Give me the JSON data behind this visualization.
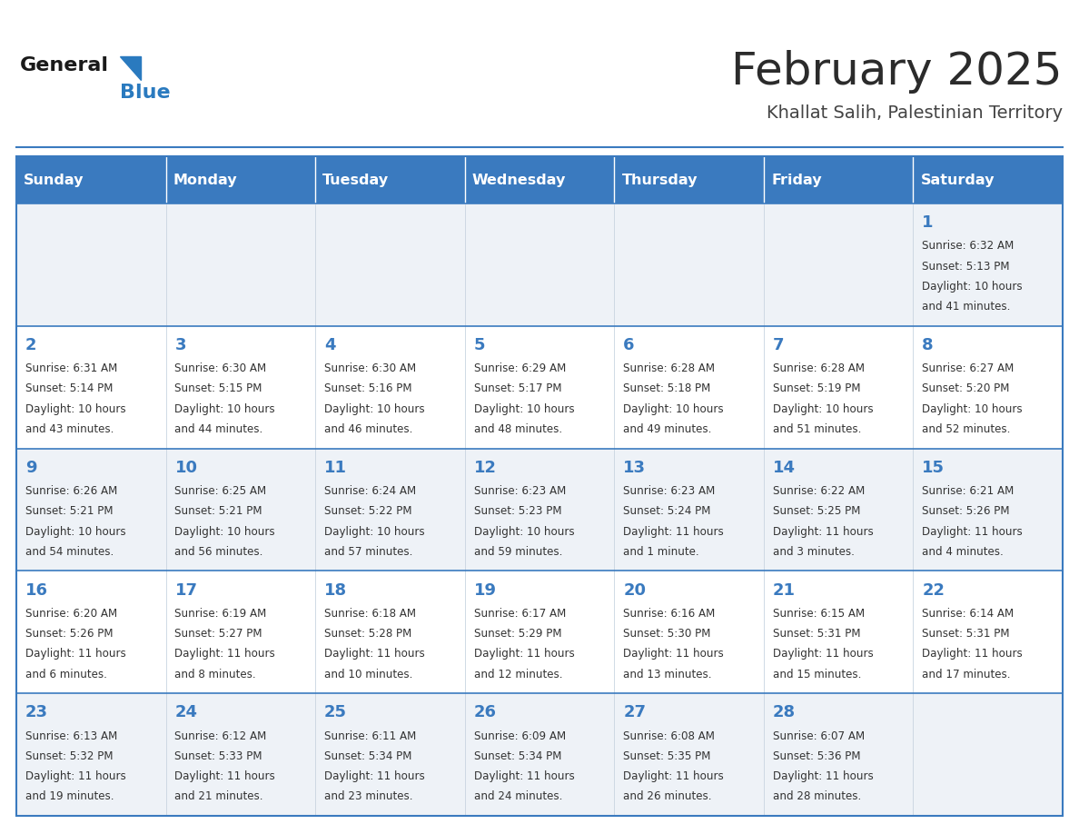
{
  "title": "February 2025",
  "subtitle": "Khallat Salih, Palestinian Territory",
  "header_color": "#3a7abf",
  "header_text_color": "#ffffff",
  "cell_bg_light": "#eef2f7",
  "cell_bg_white": "#ffffff",
  "border_color": "#3a7abf",
  "day_headers": [
    "Sunday",
    "Monday",
    "Tuesday",
    "Wednesday",
    "Thursday",
    "Friday",
    "Saturday"
  ],
  "title_color": "#2b2b2b",
  "subtitle_color": "#444444",
  "day_number_color": "#3a7abf",
  "info_color": "#333333",
  "logo_general_color": "#1a1a1a",
  "logo_blue_color": "#2a7abf",
  "weeks": [
    [
      {
        "day": null,
        "sunrise": null,
        "sunset": null,
        "daylight": null
      },
      {
        "day": null,
        "sunrise": null,
        "sunset": null,
        "daylight": null
      },
      {
        "day": null,
        "sunrise": null,
        "sunset": null,
        "daylight": null
      },
      {
        "day": null,
        "sunrise": null,
        "sunset": null,
        "daylight": null
      },
      {
        "day": null,
        "sunrise": null,
        "sunset": null,
        "daylight": null
      },
      {
        "day": null,
        "sunrise": null,
        "sunset": null,
        "daylight": null
      },
      {
        "day": 1,
        "sunrise": "6:32 AM",
        "sunset": "5:13 PM",
        "daylight": "10 hours and 41 minutes."
      }
    ],
    [
      {
        "day": 2,
        "sunrise": "6:31 AM",
        "sunset": "5:14 PM",
        "daylight": "10 hours and 43 minutes."
      },
      {
        "day": 3,
        "sunrise": "6:30 AM",
        "sunset": "5:15 PM",
        "daylight": "10 hours and 44 minutes."
      },
      {
        "day": 4,
        "sunrise": "6:30 AM",
        "sunset": "5:16 PM",
        "daylight": "10 hours and 46 minutes."
      },
      {
        "day": 5,
        "sunrise": "6:29 AM",
        "sunset": "5:17 PM",
        "daylight": "10 hours and 48 minutes."
      },
      {
        "day": 6,
        "sunrise": "6:28 AM",
        "sunset": "5:18 PM",
        "daylight": "10 hours and 49 minutes."
      },
      {
        "day": 7,
        "sunrise": "6:28 AM",
        "sunset": "5:19 PM",
        "daylight": "10 hours and 51 minutes."
      },
      {
        "day": 8,
        "sunrise": "6:27 AM",
        "sunset": "5:20 PM",
        "daylight": "10 hours and 52 minutes."
      }
    ],
    [
      {
        "day": 9,
        "sunrise": "6:26 AM",
        "sunset": "5:21 PM",
        "daylight": "10 hours and 54 minutes."
      },
      {
        "day": 10,
        "sunrise": "6:25 AM",
        "sunset": "5:21 PM",
        "daylight": "10 hours and 56 minutes."
      },
      {
        "day": 11,
        "sunrise": "6:24 AM",
        "sunset": "5:22 PM",
        "daylight": "10 hours and 57 minutes."
      },
      {
        "day": 12,
        "sunrise": "6:23 AM",
        "sunset": "5:23 PM",
        "daylight": "10 hours and 59 minutes."
      },
      {
        "day": 13,
        "sunrise": "6:23 AM",
        "sunset": "5:24 PM",
        "daylight": "11 hours and 1 minute."
      },
      {
        "day": 14,
        "sunrise": "6:22 AM",
        "sunset": "5:25 PM",
        "daylight": "11 hours and 3 minutes."
      },
      {
        "day": 15,
        "sunrise": "6:21 AM",
        "sunset": "5:26 PM",
        "daylight": "11 hours and 4 minutes."
      }
    ],
    [
      {
        "day": 16,
        "sunrise": "6:20 AM",
        "sunset": "5:26 PM",
        "daylight": "11 hours and 6 minutes."
      },
      {
        "day": 17,
        "sunrise": "6:19 AM",
        "sunset": "5:27 PM",
        "daylight": "11 hours and 8 minutes."
      },
      {
        "day": 18,
        "sunrise": "6:18 AM",
        "sunset": "5:28 PM",
        "daylight": "11 hours and 10 minutes."
      },
      {
        "day": 19,
        "sunrise": "6:17 AM",
        "sunset": "5:29 PM",
        "daylight": "11 hours and 12 minutes."
      },
      {
        "day": 20,
        "sunrise": "6:16 AM",
        "sunset": "5:30 PM",
        "daylight": "11 hours and 13 minutes."
      },
      {
        "day": 21,
        "sunrise": "6:15 AM",
        "sunset": "5:31 PM",
        "daylight": "11 hours and 15 minutes."
      },
      {
        "day": 22,
        "sunrise": "6:14 AM",
        "sunset": "5:31 PM",
        "daylight": "11 hours and 17 minutes."
      }
    ],
    [
      {
        "day": 23,
        "sunrise": "6:13 AM",
        "sunset": "5:32 PM",
        "daylight": "11 hours and 19 minutes."
      },
      {
        "day": 24,
        "sunrise": "6:12 AM",
        "sunset": "5:33 PM",
        "daylight": "11 hours and 21 minutes."
      },
      {
        "day": 25,
        "sunrise": "6:11 AM",
        "sunset": "5:34 PM",
        "daylight": "11 hours and 23 minutes."
      },
      {
        "day": 26,
        "sunrise": "6:09 AM",
        "sunset": "5:34 PM",
        "daylight": "11 hours and 24 minutes."
      },
      {
        "day": 27,
        "sunrise": "6:08 AM",
        "sunset": "5:35 PM",
        "daylight": "11 hours and 26 minutes."
      },
      {
        "day": 28,
        "sunrise": "6:07 AM",
        "sunset": "5:36 PM",
        "daylight": "11 hours and 28 minutes."
      },
      {
        "day": null,
        "sunrise": null,
        "sunset": null,
        "daylight": null
      }
    ]
  ]
}
